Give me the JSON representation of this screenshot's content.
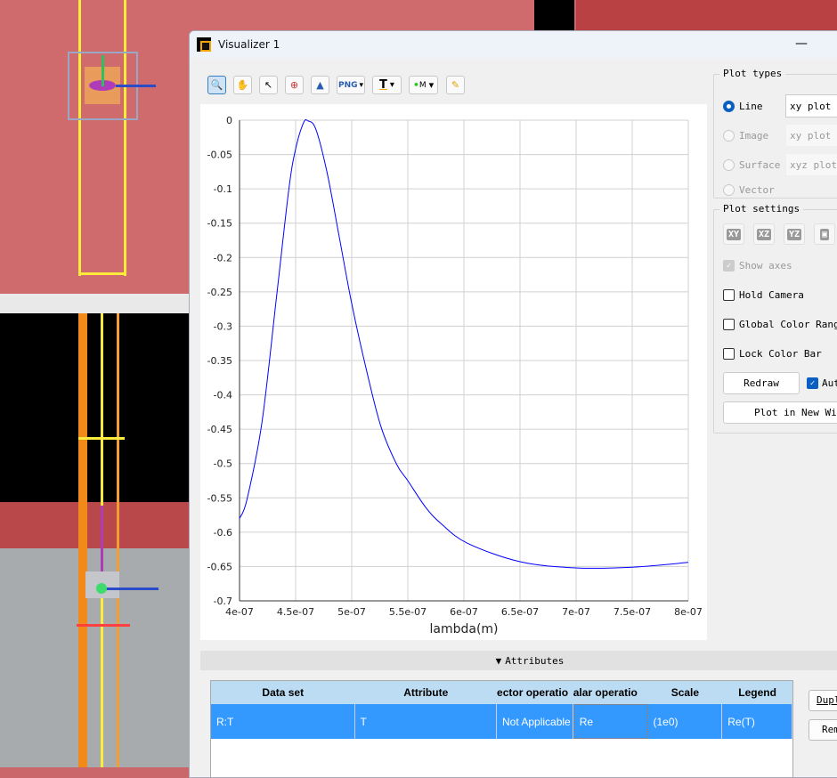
{
  "window": {
    "title": "Visualizer 1",
    "minimize_icon": "minimize-icon"
  },
  "toolbar": {
    "tools": [
      "zoom-icon",
      "pan-hand-icon",
      "select-arrow-icon",
      "zoom-region-icon",
      "mountain-icon",
      "png-export-icon",
      "text-icon",
      "marker-icon",
      "pencil-icon"
    ],
    "png_label": "PNG",
    "text_label": "T",
    "marker_label": "M"
  },
  "plot_types": {
    "title": "Plot types",
    "options": [
      {
        "label": "Line",
        "selected": true,
        "enabled": true,
        "combo": "xy plot"
      },
      {
        "label": "Image",
        "selected": false,
        "enabled": false,
        "combo": "xy plot"
      },
      {
        "label": "Surface",
        "selected": false,
        "enabled": false,
        "combo": "xyz plot"
      },
      {
        "label": "Vector",
        "selected": false,
        "enabled": false
      }
    ]
  },
  "plot_settings": {
    "title": "Plot settings",
    "view_buttons": [
      "XY",
      "XZ",
      "YZ"
    ],
    "lock_icon": "lock-icon",
    "show_axes": {
      "label": "Show axes",
      "checked": true,
      "enabled": false
    },
    "hold_camera": {
      "label": "Hold Camera",
      "checked": false
    },
    "global_color_range": {
      "label": "Global Color Range",
      "checked": false
    },
    "lock_color_bar": {
      "label": "Lock Color Bar",
      "checked": false
    },
    "redraw": "Redraw",
    "auto": {
      "label": "Aut",
      "checked": true
    },
    "plot_new_window": "Plot in New Wind"
  },
  "attributes": {
    "label": "Attributes",
    "toggle_icon": "triangle-down-icon"
  },
  "table": {
    "headers": [
      "Data set",
      "Attribute",
      "ector operatio",
      "alar operatio",
      "Scale",
      "Legend"
    ],
    "rows": [
      [
        "R:T",
        "T",
        "Not Applicable",
        "Re",
        "(1e0)",
        "Re(T)"
      ]
    ]
  },
  "side_buttons": [
    "Dupl",
    "Rem"
  ],
  "chart_data": {
    "type": "line",
    "xlabel": "lambda(m)",
    "ylabel": "",
    "title": "",
    "xlim": [
      4e-07,
      8e-07
    ],
    "ylim": [
      -0.7,
      0
    ],
    "grid": true,
    "xticks": [
      "4e-07",
      "4.5e-07",
      "5e-07",
      "5.5e-07",
      "6e-07",
      "6.5e-07",
      "7e-07",
      "7.5e-07",
      "8e-07"
    ],
    "yticks": [
      "0",
      "-0.05",
      "-0.1",
      "-0.15",
      "-0.2",
      "-0.25",
      "-0.3",
      "-0.35",
      "-0.4",
      "-0.45",
      "-0.5",
      "-0.55",
      "-0.6",
      "-0.65",
      "-0.7"
    ],
    "color": "#0000ff",
    "x": [
      4e-07,
      4.067e-07,
      4.2e-07,
      4.33e-07,
      4.44e-07,
      4.5e-07,
      4.57e-07,
      4.61e-07,
      4.68e-07,
      4.78e-07,
      4.89e-07,
      5e-07,
      5.13e-07,
      5.26e-07,
      5.4e-07,
      5.5e-07,
      5.66e-07,
      5.8e-07,
      6.03e-07,
      6.5e-07,
      7e-07,
      7.5e-07,
      8e-07
    ],
    "y": [
      -0.58,
      -0.552,
      -0.44,
      -0.257,
      -0.1,
      -0.042,
      -0.004,
      -0.001,
      -0.013,
      -0.076,
      -0.171,
      -0.267,
      -0.363,
      -0.446,
      -0.501,
      -0.525,
      -0.564,
      -0.588,
      -0.616,
      -0.643,
      -0.652,
      -0.651,
      -0.644
    ]
  }
}
